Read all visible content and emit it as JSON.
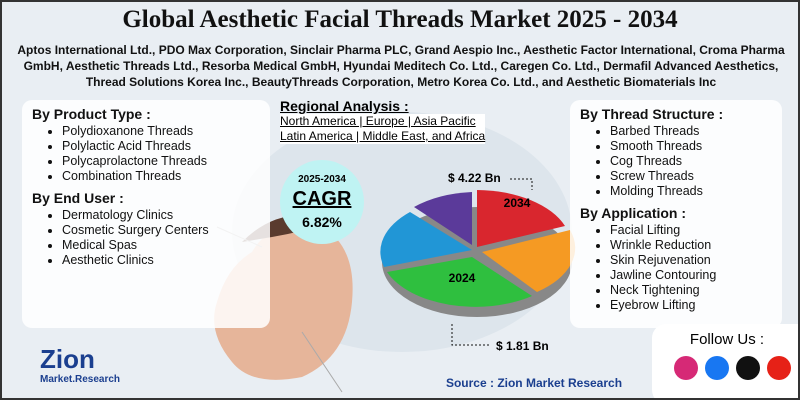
{
  "header": {
    "title": "Global Aesthetic Facial Threads Market 2025 - 2034",
    "companies": "Aptos International Ltd., PDO Max Corporation, Sinclair Pharma PLC, Grand Aespio Inc., Aesthetic Factor International, Croma Pharma GmbH, Aesthetic Threads Ltd., Resorba Medical GmbH, Hyundai Meditech Co. Ltd., Caregen Co. Ltd., Dermafil Advanced Aesthetics, Thread Solutions Korea Inc., BeautyThreads Corporation, Metro Korea Co. Ltd., and Aesthetic Biomaterials Inc"
  },
  "product_type": {
    "heading": "By Product Type :",
    "items": [
      "Polydioxanone Threads",
      "Polylactic Acid Threads",
      "Polycaprolactone Threads",
      "Combination Threads"
    ]
  },
  "end_user": {
    "heading": "By End User :",
    "items": [
      "Dermatology Clinics",
      "Cosmetic Surgery Centers",
      "Medical Spas",
      "Aesthetic Clinics"
    ]
  },
  "regional": {
    "heading": "Regional Analysis :",
    "lines": [
      "North America | Europe | Asia Pacific",
      "Latin America | Middle East, and Africa"
    ]
  },
  "cagr": {
    "period": "2025-2034",
    "label": "CAGR",
    "value": "6.82%"
  },
  "pie": {
    "end_year": "2034",
    "end_value": "$ 4.22 Bn",
    "start_year": "2024",
    "start_value": "$ 1.81 Bn"
  },
  "thread_structure": {
    "heading": "By Thread Structure :",
    "items": [
      "Barbed Threads",
      "Smooth Threads",
      "Cog Threads",
      "Screw Threads",
      "Molding Threads"
    ]
  },
  "application": {
    "heading": "By Application :",
    "items": [
      "Facial Lifting",
      "Wrinkle Reduction",
      "Skin Rejuvenation",
      "Jawline Contouring",
      "Neck Tightening",
      "Eyebrow Lifting"
    ]
  },
  "logo": {
    "name": "Zion",
    "sub": "Market.Research"
  },
  "source": "Source : Zion Market Research",
  "follow": "Follow Us :"
}
